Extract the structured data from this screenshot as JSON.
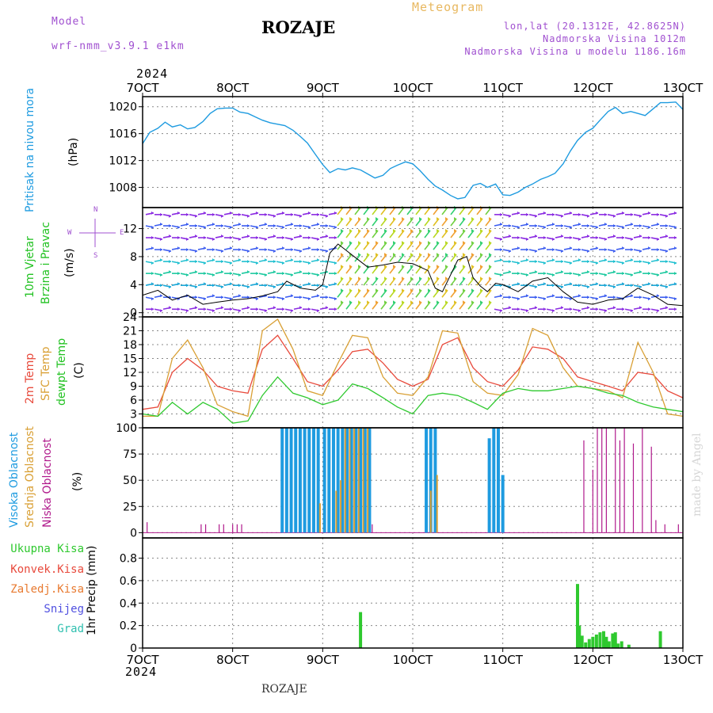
{
  "header": {
    "model_label": "Model",
    "model_name": "wrf-nmm_v3.9.1 e1km",
    "title": "ROZAJE",
    "meteogram_label": "Meteogram",
    "coords": "lon,lat (20.1312E, 42.8625N)",
    "elevation": "Nadmorska Visina 1012m",
    "model_elevation": "Nadmorska Visina u modelu 1186.16m",
    "year_top": "2024",
    "year_bottom": "2024",
    "footer": "ROZAJE",
    "watermark": "made by Angel"
  },
  "colors": {
    "pressure": "#1e9be0",
    "temp2m": "#e84a3c",
    "sfc": "#d9a035",
    "dewpt": "#2fc92f",
    "high_cloud": "#1e9be0",
    "mid_cloud": "#d9a035",
    "low_cloud": "#b01a8c",
    "precip": "#2fc92f",
    "wind_label": "#22c222",
    "purple": "#a050d0"
  },
  "panel_labels": {
    "pressure": [
      "Pritisak na nivou mora",
      "(hPa)"
    ],
    "wind": [
      "10m Vjetar",
      "Brzina i Pravac",
      "(m/s)"
    ],
    "temp": [
      "2m Temp",
      "SFC Temp",
      "dewpt Temp",
      "(C)"
    ],
    "cloud": [
      "Visoka Oblacnost",
      "Srednja Oblacnost",
      "Niska Oblacnost",
      "(%)"
    ],
    "precip_axis": "1hr Precip (mm)",
    "precip_legend": [
      "Ukupna Kisa",
      "Konvek.Kisa",
      "Zaledj.Kisa",
      "Snijeg",
      "Grad"
    ],
    "compass": [
      "N",
      "W",
      "E",
      "S"
    ]
  },
  "chart_data": [
    {
      "type": "line",
      "title": "Pritisak na nivou mora",
      "ylabel": "(hPa)",
      "x_ticks": [
        "7OCT",
        "8OCT",
        "9OCT",
        "10OCT",
        "11OCT",
        "12OCT",
        "13OCT"
      ],
      "x_range_days": [
        7,
        13
      ],
      "ylim": [
        1005,
        1021.5
      ],
      "y_ticks": [
        1008,
        1012,
        1016,
        1020
      ],
      "series": [
        {
          "x": [
            7.0,
            7.08,
            7.17,
            7.25,
            7.33,
            7.42,
            7.5,
            7.58,
            7.67,
            7.75,
            7.83,
            7.92,
            8.0,
            8.08,
            8.17,
            8.25,
            8.33,
            8.42,
            8.5,
            8.58,
            8.67,
            8.75,
            8.83,
            8.92,
            9.0,
            9.08,
            9.17,
            9.25,
            9.33,
            9.42,
            9.5,
            9.58,
            9.67,
            9.75,
            9.83,
            9.92,
            10.0,
            10.08,
            10.17,
            10.25,
            10.33,
            10.42,
            10.5,
            10.58,
            10.67,
            10.75,
            10.83,
            10.92,
            11.0,
            11.08,
            11.17,
            11.25,
            11.33,
            11.42,
            11.5,
            11.58,
            11.67,
            11.75,
            11.83,
            11.92,
            12.0,
            12.08,
            12.17,
            12.25,
            12.33,
            12.42,
            12.5,
            12.58,
            12.67,
            12.75,
            12.83,
            12.92,
            13.0
          ],
          "values": [
            1014.5,
            1016.2,
            1016.8,
            1017.7,
            1017.0,
            1017.3,
            1016.7,
            1016.9,
            1017.8,
            1019.0,
            1019.7,
            1019.8,
            1019.8,
            1019.2,
            1019.0,
            1018.5,
            1018.0,
            1017.6,
            1017.4,
            1017.2,
            1016.5,
            1015.6,
            1014.6,
            1012.9,
            1011.4,
            1010.2,
            1010.8,
            1010.6,
            1010.9,
            1010.6,
            1010.0,
            1009.4,
            1009.8,
            1010.8,
            1011.3,
            1011.8,
            1011.5,
            1010.5,
            1009.2,
            1008.2,
            1007.6,
            1006.8,
            1006.3,
            1006.5,
            1008.3,
            1008.6,
            1008.0,
            1008.5,
            1006.9,
            1006.8,
            1007.3,
            1008.0,
            1008.5,
            1009.2,
            1009.6,
            1010.1,
            1011.5,
            1013.4,
            1015.0,
            1016.2,
            1016.8,
            1018.0,
            1019.3,
            1019.9,
            1019.0,
            1019.3,
            1019.0,
            1018.7,
            1019.7,
            1020.6,
            1020.6,
            1020.7,
            1019.6
          ]
        }
      ]
    },
    {
      "type": "line",
      "title": "10m Vjetar Brzina i Pravac",
      "ylabel": "(m/s)",
      "ylim": [
        -0.6,
        15
      ],
      "y_ticks": [
        0,
        4,
        8,
        12
      ],
      "series": [
        {
          "name": "wind speed",
          "x": [
            7.0,
            7.17,
            7.33,
            7.5,
            7.67,
            7.83,
            8.0,
            8.17,
            8.33,
            8.5,
            8.6,
            8.75,
            8.92,
            9.0,
            9.08,
            9.17,
            9.25,
            9.33,
            9.5,
            9.67,
            9.83,
            10.0,
            10.17,
            10.25,
            10.33,
            10.5,
            10.6,
            10.67,
            10.75,
            10.83,
            10.92,
            11.0,
            11.17,
            11.33,
            11.5,
            11.67,
            11.83,
            12.0,
            12.17,
            12.33,
            12.5,
            12.67,
            12.83,
            13.0
          ],
          "values": [
            2.5,
            3.2,
            1.8,
            2.5,
            1.2,
            1.5,
            1.8,
            2.0,
            2.4,
            3.0,
            4.5,
            3.5,
            3.2,
            4.0,
            8.5,
            9.8,
            9.0,
            8.2,
            6.5,
            6.8,
            7.2,
            7.0,
            6.0,
            3.5,
            3.0,
            7.5,
            8.0,
            5.0,
            3.8,
            3.0,
            4.2,
            4.0,
            3.0,
            4.5,
            5.0,
            3.0,
            1.5,
            1.2,
            1.8,
            2.0,
            3.5,
            2.5,
            1.2,
            1.0
          ]
        }
      ]
    },
    {
      "type": "line",
      "title": "2m Temp / SFC Temp / dewpt Temp",
      "ylabel": "(C)",
      "ylim": [
        0,
        24
      ],
      "y_ticks": [
        0,
        3,
        6,
        9,
        12,
        15,
        18,
        21,
        24
      ],
      "x": [
        7.0,
        7.17,
        7.33,
        7.5,
        7.67,
        7.83,
        8.0,
        8.17,
        8.33,
        8.5,
        8.67,
        8.83,
        9.0,
        9.17,
        9.33,
        9.5,
        9.67,
        9.83,
        10.0,
        10.17,
        10.33,
        10.5,
        10.67,
        10.83,
        11.0,
        11.17,
        11.33,
        11.5,
        11.67,
        11.83,
        12.0,
        12.17,
        12.33,
        12.5,
        12.67,
        12.83,
        13.0
      ],
      "series": [
        {
          "name": "2m Temp",
          "values": [
            4.0,
            4.5,
            12.0,
            15.0,
            12.5,
            9.0,
            8.0,
            7.5,
            17.0,
            20.0,
            15.0,
            10.0,
            9.0,
            12.5,
            16.5,
            17.0,
            14.0,
            10.5,
            9.0,
            10.5,
            18.0,
            19.5,
            13.0,
            10.0,
            9.0,
            12.5,
            17.5,
            17.0,
            15.0,
            11.0,
            10.0,
            9.0,
            8.0,
            12.0,
            11.5,
            8.0,
            6.5
          ]
        },
        {
          "name": "SFC Temp",
          "values": [
            2.5,
            2.5,
            15.0,
            19.0,
            13.0,
            5.0,
            3.5,
            2.5,
            21.0,
            23.5,
            17.0,
            8.0,
            7.0,
            14.0,
            20.0,
            19.5,
            11.0,
            7.5,
            7.0,
            11.0,
            21.0,
            20.5,
            10.0,
            7.5,
            7.0,
            11.5,
            21.5,
            20.0,
            13.0,
            9.0,
            8.5,
            8.0,
            6.5,
            18.5,
            12.0,
            3.0,
            2.5
          ]
        },
        {
          "name": "dewpt Temp",
          "values": [
            3.0,
            2.5,
            5.5,
            3.0,
            5.5,
            4.0,
            1.0,
            1.5,
            7.0,
            11.0,
            7.5,
            6.5,
            5.0,
            6.0,
            9.5,
            8.5,
            6.5,
            4.5,
            3.0,
            7.0,
            7.5,
            7.0,
            5.5,
            4.0,
            7.5,
            8.5,
            8.0,
            8.0,
            8.5,
            9.0,
            8.5,
            7.5,
            7.0,
            5.5,
            4.5,
            4.0,
            3.5
          ]
        }
      ]
    },
    {
      "type": "bar",
      "title": "Visoka / Srednja / Niska Oblacnost",
      "ylabel": "(%)",
      "ylim": [
        -5,
        100
      ],
      "y_ticks": [
        0,
        25,
        50,
        75,
        100
      ],
      "series": [
        {
          "name": "Visoka Oblacnost",
          "x": [
            8.55,
            8.6,
            8.65,
            8.7,
            8.75,
            8.8,
            8.85,
            8.9,
            8.95,
            9.02,
            9.07,
            9.12,
            9.17,
            9.22,
            9.27,
            9.32,
            9.37,
            9.42,
            9.47,
            9.52,
            10.15,
            10.2,
            10.25,
            10.85,
            10.9,
            10.95,
            11.0
          ],
          "values": [
            100,
            100,
            100,
            100,
            100,
            100,
            100,
            100,
            100,
            100,
            100,
            100,
            100,
            100,
            100,
            100,
            100,
            100,
            100,
            100,
            100,
            100,
            100,
            90,
            100,
            100,
            55
          ]
        },
        {
          "name": "Srednja Oblacnost",
          "x": [
            8.97,
            9.15,
            9.2,
            9.25,
            9.3,
            9.35,
            9.4,
            9.45,
            9.5,
            10.2,
            10.27
          ],
          "values": [
            28,
            40,
            50,
            100,
            100,
            100,
            100,
            100,
            100,
            40,
            55
          ]
        },
        {
          "name": "Niska Oblacnost",
          "x": [
            7.05,
            7.65,
            7.7,
            7.85,
            7.9,
            8.0,
            8.05,
            8.1,
            9.55,
            11.9,
            12.0,
            12.05,
            12.1,
            12.15,
            12.25,
            12.3,
            12.35,
            12.45,
            12.55,
            12.65,
            12.7,
            12.8,
            12.95
          ],
          "values": [
            10,
            8,
            8,
            8,
            8,
            8,
            8,
            8,
            8,
            88,
            60,
            100,
            100,
            100,
            100,
            88,
            100,
            85,
            100,
            82,
            12,
            8,
            8
          ]
        }
      ]
    },
    {
      "type": "bar",
      "title": "1hr Precip",
      "ylabel": "1hr Precip (mm)",
      "x_ticks": [
        "7OCT",
        "8OCT",
        "9OCT",
        "10OCT",
        "11OCT",
        "12OCT",
        "13OCT"
      ],
      "ylim": [
        0,
        0.98
      ],
      "y_ticks": [
        0,
        0.2,
        0.4,
        0.6,
        0.8
      ],
      "series": [
        {
          "name": "Ukupna Kisa",
          "x": [
            9.42,
            11.83,
            11.85,
            11.88,
            11.92,
            11.96,
            12.0,
            12.04,
            12.08,
            12.12,
            12.15,
            12.18,
            12.22,
            12.25,
            12.28,
            12.32,
            12.4,
            12.75
          ],
          "values": [
            0.32,
            0.57,
            0.2,
            0.11,
            0.05,
            0.08,
            0.1,
            0.12,
            0.14,
            0.15,
            0.1,
            0.06,
            0.13,
            0.14,
            0.04,
            0.06,
            0.03,
            0.15
          ]
        }
      ]
    }
  ]
}
